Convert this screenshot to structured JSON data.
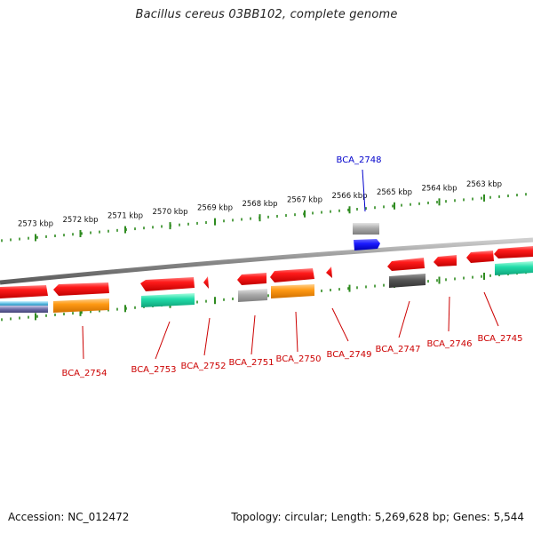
{
  "title": "Bacillus cereus 03BB102, complete genome",
  "footer": {
    "accession": "Accession: NC_012472",
    "summary": "Topology: circular; Length: 5,269,628 bp; Genes: 5,544"
  },
  "colors": {
    "backbone": "#8a8a8a",
    "tick": "#2e8b1f",
    "gene_red": "#ee1111",
    "gene_blue": "#1111dd",
    "orange": "#ff9a14",
    "teal": "#22ddaa",
    "gray": "#aaaaaa",
    "dark_gray": "#555555",
    "label_red": "#cc0000",
    "label_blue": "#0000cc"
  },
  "kbp_labels": [
    "2573 kbp",
    "2572 kbp",
    "2571 kbp",
    "2570 kbp",
    "2569 kbp",
    "2568 kbp",
    "2567 kbp",
    "2566 kbp",
    "2565 kbp",
    "2564 kbp",
    "2563 kbp"
  ],
  "genes": [
    {
      "label": "BCA_2754",
      "color": "label_red"
    },
    {
      "label": "BCA_2753",
      "color": "label_red"
    },
    {
      "label": "BCA_2752",
      "color": "label_red"
    },
    {
      "label": "BCA_2751",
      "color": "label_red"
    },
    {
      "label": "BCA_2750",
      "color": "label_red"
    },
    {
      "label": "BCA_2749",
      "color": "label_red"
    },
    {
      "label": "BCA_2748",
      "color": "label_blue"
    },
    {
      "label": "BCA_2747",
      "color": "label_red"
    },
    {
      "label": "BCA_2746",
      "color": "label_red"
    },
    {
      "label": "BCA_2745",
      "color": "label_red"
    }
  ]
}
